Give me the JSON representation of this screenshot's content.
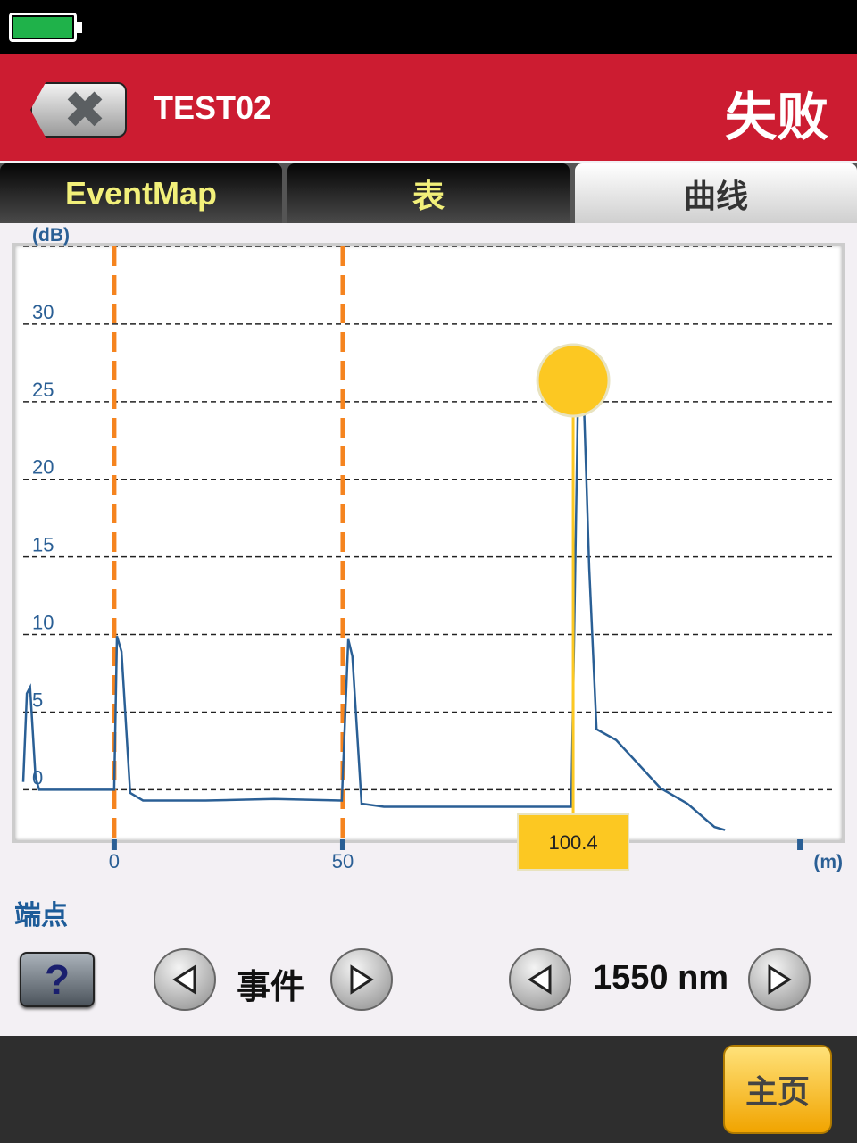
{
  "status_bar": {
    "battery_level": 1.0,
    "battery_color": "#1fb24a"
  },
  "header": {
    "title": "TEST02",
    "result": "失败",
    "close_icon": "close-x-icon",
    "color": "#cc1c31"
  },
  "tabs": [
    {
      "label": "EventMap",
      "active": false
    },
    {
      "label": "表",
      "active": false
    },
    {
      "label": "曲线",
      "active": true
    }
  ],
  "chart_data": {
    "type": "line",
    "ylabel": "(dB)",
    "xlabel": "(m)",
    "yticks": [
      0,
      5,
      10,
      15,
      20,
      25,
      30
    ],
    "xticks": [
      0,
      50
    ],
    "ylim": [
      -3.2,
      35
    ],
    "xlim": [
      -19.9,
      157.8
    ],
    "grid": "horizontal dashed",
    "series": [
      {
        "color": "#2a5f95",
        "points": [
          [
            -19.9,
            0.5
          ],
          [
            -19.1,
            6.2
          ],
          [
            -18.4,
            6.6
          ],
          [
            -17.2,
            0.8
          ],
          [
            -16.4,
            0
          ],
          [
            0,
            0
          ],
          [
            0.6,
            9.9
          ],
          [
            1.6,
            8.9
          ],
          [
            3.5,
            -0.2
          ],
          [
            6.3,
            -0.7
          ],
          [
            20,
            -0.7
          ],
          [
            35,
            -0.6
          ],
          [
            49.8,
            -0.7
          ],
          [
            51.2,
            9.7
          ],
          [
            52.1,
            8.6
          ],
          [
            54.1,
            -0.9
          ],
          [
            59,
            -1.1
          ],
          [
            80,
            -1.1
          ],
          [
            100,
            -1.1
          ],
          [
            101.6,
            28
          ],
          [
            102.5,
            27.2
          ],
          [
            103.9,
            14.3
          ],
          [
            105.5,
            3.9
          ],
          [
            109.8,
            3.2
          ],
          [
            119.5,
            0.1
          ],
          [
            125.4,
            -0.9
          ],
          [
            131.3,
            -2.4
          ],
          [
            133.6,
            -2.6
          ]
        ]
      }
    ],
    "event_markers": [
      0,
      50
    ],
    "event_marker_color": "#f5841f",
    "cursor": {
      "position": 100.4,
      "label": "100.4",
      "color": "#fcc822"
    },
    "end_tick": 150
  },
  "controls": {
    "endpoint_label": "端点",
    "help_label": "?",
    "event_label": "事件",
    "wavelength_label": "1550 nm"
  },
  "footer": {
    "home_label": "主页"
  }
}
